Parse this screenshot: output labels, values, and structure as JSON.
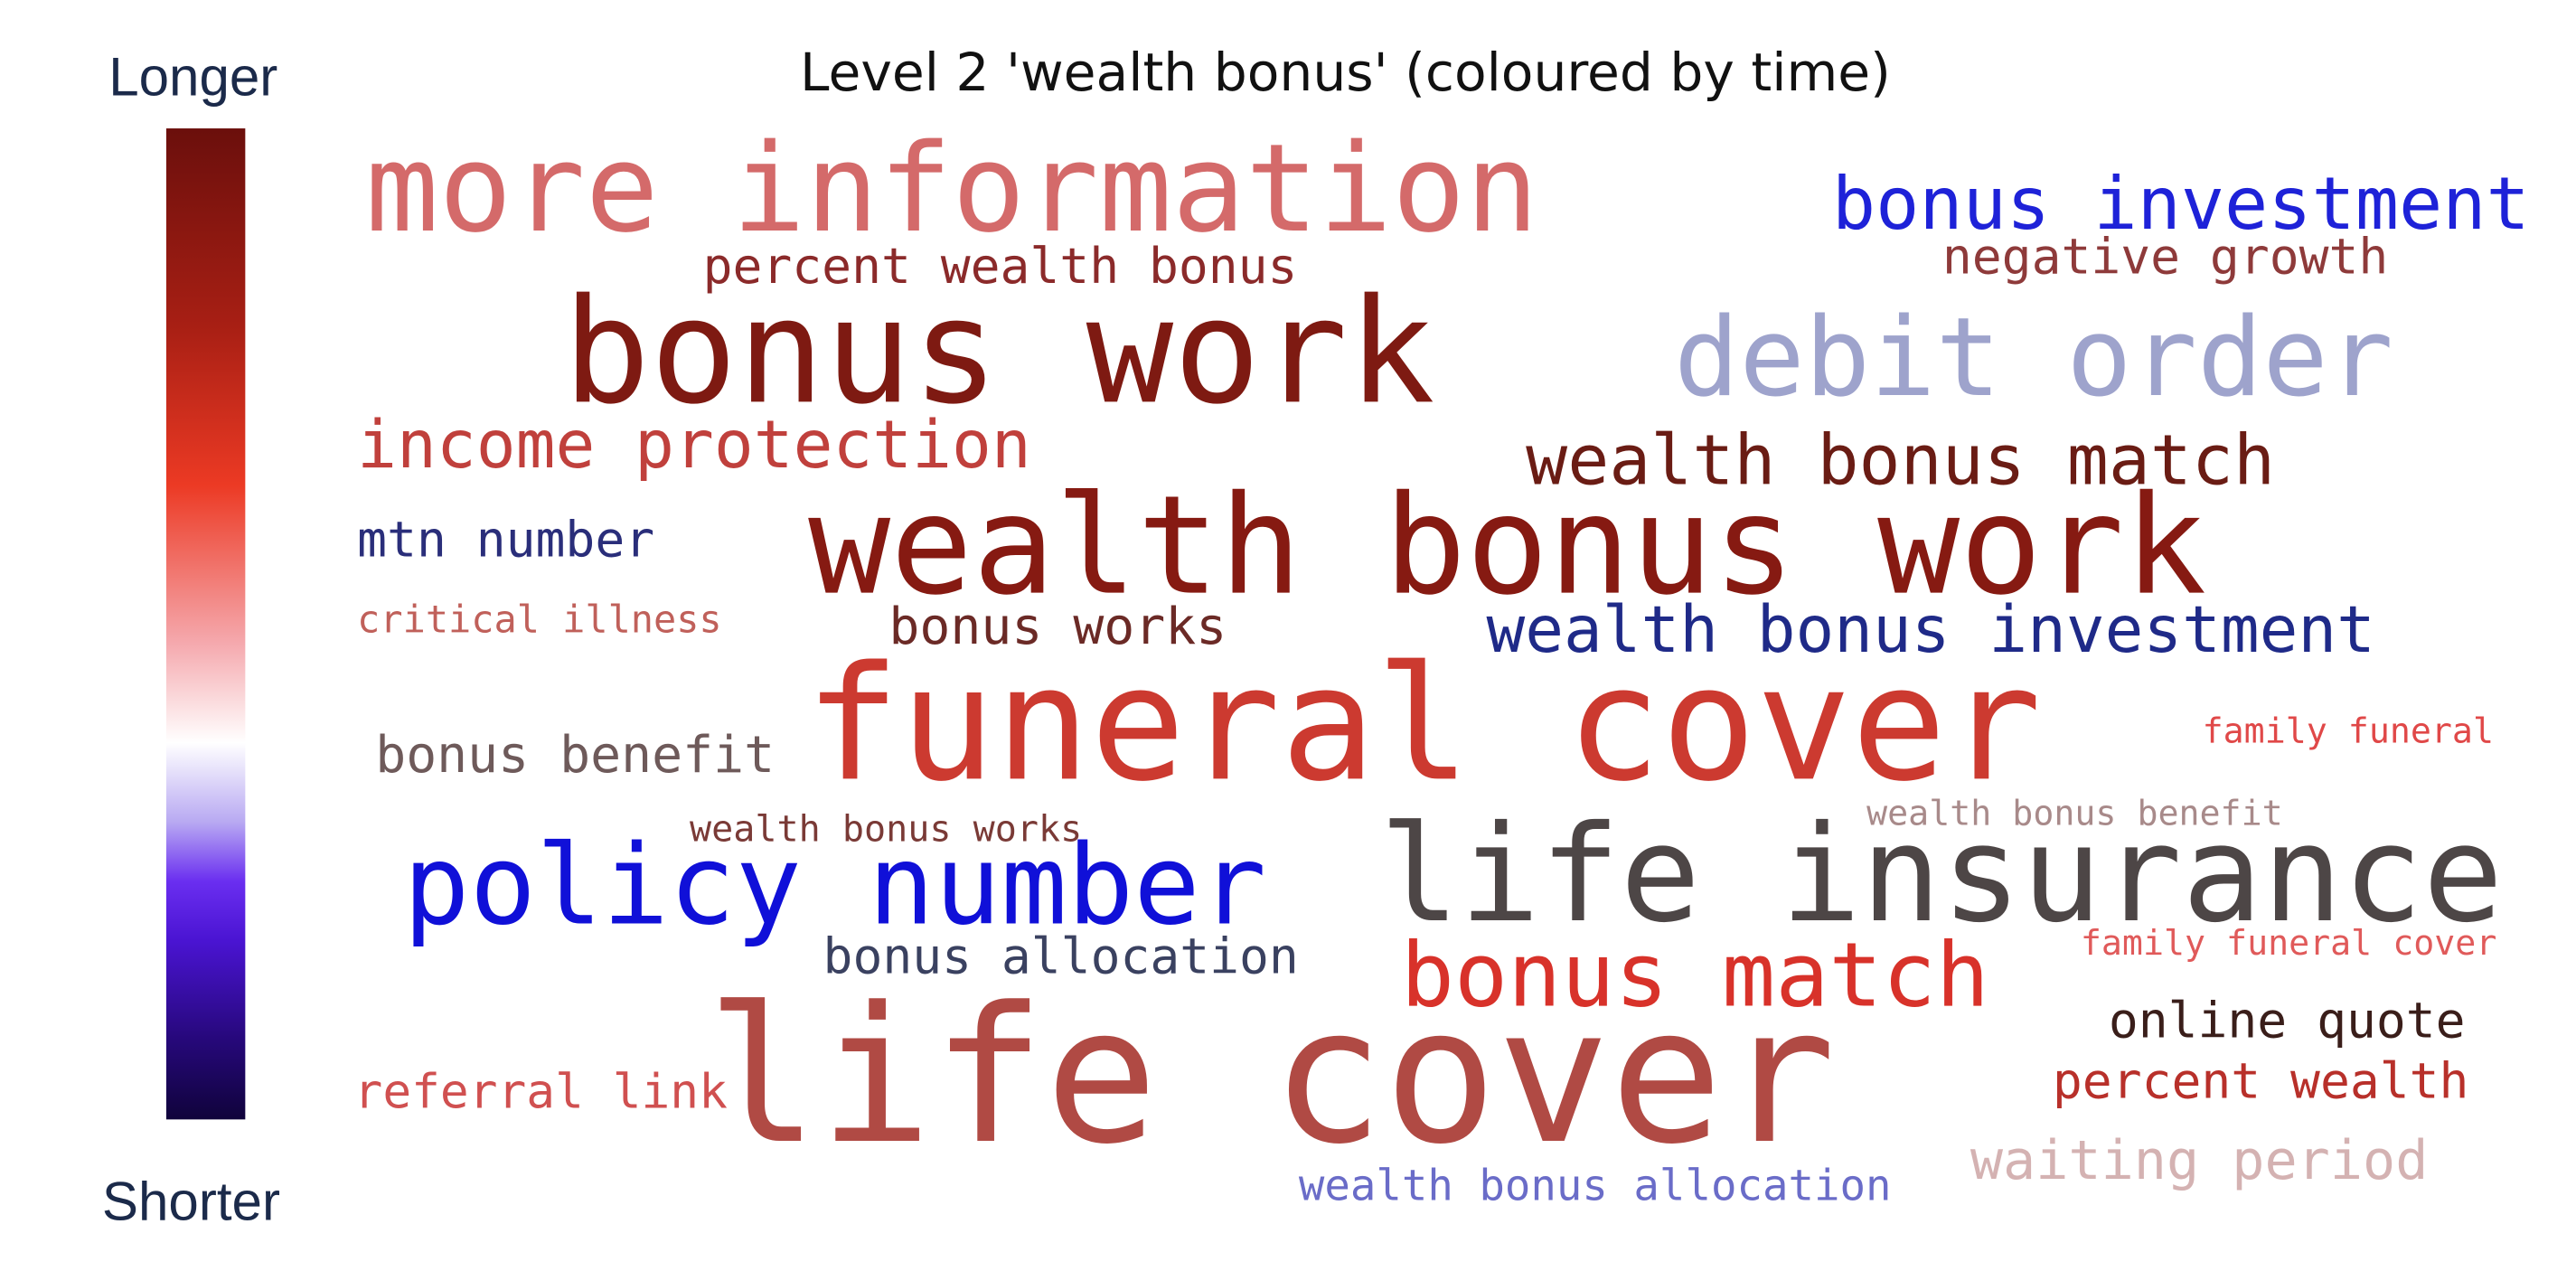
{
  "title": "Level 2 'wealth bonus' (coloured by time)",
  "colorbar": {
    "top_label": "Longer",
    "bottom_label": "Shorter"
  },
  "words": [
    {
      "text": "more information",
      "color": "#d46a6a"
    },
    {
      "text": "bonus investment",
      "color": "#1e22d8"
    },
    {
      "text": "percent wealth bonus",
      "color": "#8b2a2a"
    },
    {
      "text": "negative growth",
      "color": "#8e3a3a"
    },
    {
      "text": "bonus work",
      "color": "#7e1a12"
    },
    {
      "text": "debit order",
      "color": "#9ea3cc"
    },
    {
      "text": "income protection",
      "color": "#c0403c"
    },
    {
      "text": "wealth bonus match",
      "color": "#6a1c14"
    },
    {
      "text": "mtn number",
      "color": "#2a2e7a"
    },
    {
      "text": "wealth bonus work",
      "color": "#861a12"
    },
    {
      "text": "critical illness",
      "color": "#c0605a"
    },
    {
      "text": "bonus works",
      "color": "#6b2a26"
    },
    {
      "text": "wealth bonus investment",
      "color": "#1f2a88"
    },
    {
      "text": "funeral cover",
      "color": "#cc3a30"
    },
    {
      "text": "family funeral",
      "color": "#e04848"
    },
    {
      "text": "bonus benefit",
      "color": "#6e5a5a"
    },
    {
      "text": "wealth bonus works",
      "color": "#7a3a36"
    },
    {
      "text": "wealth bonus benefit",
      "color": "#a88a8a"
    },
    {
      "text": "policy number",
      "color": "#1010d8"
    },
    {
      "text": "life insurance",
      "color": "#4d4646"
    },
    {
      "text": "bonus allocation",
      "color": "#3a4160"
    },
    {
      "text": "family funeral cover",
      "color": "#e05a5a"
    },
    {
      "text": "bonus match",
      "color": "#d8322a"
    },
    {
      "text": "online quote",
      "color": "#3a1e1a"
    },
    {
      "text": "referral link",
      "color": "#d05050"
    },
    {
      "text": "life cover",
      "color": "#b04a44"
    },
    {
      "text": "percent wealth",
      "color": "#b8302a"
    },
    {
      "text": "waiting period",
      "color": "#d4b2b2"
    },
    {
      "text": "wealth bonus allocation",
      "color": "#6a6cc8"
    }
  ]
}
